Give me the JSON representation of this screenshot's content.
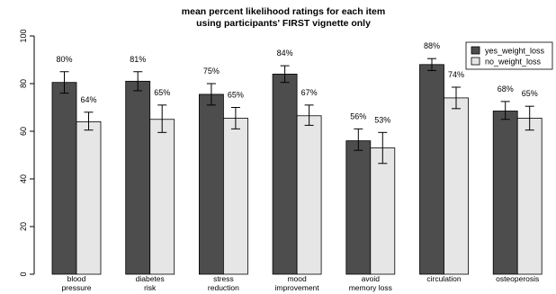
{
  "chart_data": {
    "type": "bar",
    "title_lines": [
      "mean percent likelihood ratings for each item",
      "using participants' FIRST vignette only"
    ],
    "categories": [
      [
        "blood",
        "pressure"
      ],
      [
        "diabetes",
        "risk"
      ],
      [
        "stress",
        "reduction"
      ],
      [
        "mood",
        "improvement"
      ],
      [
        "avoid",
        "memory loss"
      ],
      [
        "circulation"
      ],
      [
        "osteoperosis"
      ]
    ],
    "series": [
      {
        "name": "yes_weight_loss",
        "color": "#4d4d4d",
        "values": [
          80.5,
          81,
          75.5,
          84,
          56,
          88,
          68.5
        ],
        "err_low": [
          76,
          77,
          71,
          80.5,
          52,
          85.5,
          65
        ],
        "err_high": [
          85,
          85,
          80,
          87.5,
          61,
          90.5,
          72.5
        ],
        "labels": [
          "80%",
          "81%",
          "75%",
          "84%",
          "56%",
          "88%",
          "68%"
        ]
      },
      {
        "name": "no_weight_loss",
        "color": "#e6e6e6",
        "values": [
          64,
          65,
          65.5,
          66.5,
          53,
          74,
          65.5
        ],
        "err_low": [
          60.5,
          59.5,
          61,
          62.5,
          46.5,
          69.5,
          60.5
        ],
        "err_high": [
          68,
          71,
          70,
          71,
          59.5,
          78.5,
          70.5
        ],
        "labels": [
          "64%",
          "65%",
          "65%",
          "67%",
          "53%",
          "74%",
          "65%"
        ]
      }
    ],
    "y_ticks": [
      "0",
      "20",
      "40",
      "60",
      "80",
      "100"
    ],
    "ylim": [
      0,
      100
    ],
    "grid": false,
    "legend_position": "top-right"
  }
}
